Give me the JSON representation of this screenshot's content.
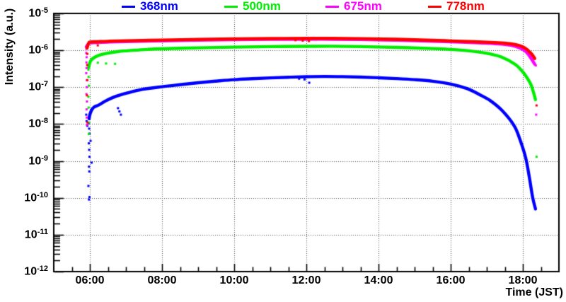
{
  "chart_data": {
    "type": "line",
    "title": "",
    "xlabel": "Time (JST)",
    "ylabel": "Intensity (a.u.)",
    "background_color": "#ffffff",
    "frame_color": "#000000",
    "grid": "dotted",
    "grid_color": "#4d4d4d",
    "legend_position": "top",
    "x_axis": {
      "unit": "hours JST",
      "start_hour": 5,
      "end_hour": 19,
      "major_tick_hours": [
        6,
        8,
        10,
        12,
        14,
        16,
        18
      ],
      "tick_labels": [
        "06:00",
        "08:00",
        "10:00",
        "12:00",
        "14:00",
        "16:00",
        "18:00"
      ],
      "minor_tick_interval_hours": 0.5
    },
    "y_axis": {
      "scale": "log",
      "min": 1e-12,
      "max": 1e-05,
      "tick_label_base": "10",
      "tick_exponents": [
        -5,
        -6,
        -7,
        -8,
        -9,
        -10,
        -11,
        -12
      ]
    },
    "series": [
      {
        "name": "368nm",
        "color": "#0000ff",
        "points": [
          [
            5.98,
            1.4e-08
          ],
          [
            6.0,
            1.8e-08
          ],
          [
            6.05,
            2.4e-08
          ],
          [
            6.12,
            2.9e-08
          ],
          [
            6.25,
            3.3e-08
          ],
          [
            6.45,
            4.3e-08
          ],
          [
            6.65,
            5.3e-08
          ],
          [
            6.85,
            6.2e-08
          ],
          [
            7.05,
            7e-08
          ],
          [
            7.45,
            8.7e-08
          ],
          [
            8.0,
            1.03e-07
          ],
          [
            8.5,
            1.17e-07
          ],
          [
            9.0,
            1.32e-07
          ],
          [
            9.5,
            1.46e-07
          ],
          [
            10.0,
            1.6e-07
          ],
          [
            10.5,
            1.7e-07
          ],
          [
            11.0,
            1.79e-07
          ],
          [
            11.5,
            1.86e-07
          ],
          [
            12.0,
            1.92e-07
          ],
          [
            12.5,
            1.95e-07
          ],
          [
            13.0,
            1.93e-07
          ],
          [
            13.5,
            1.88e-07
          ],
          [
            14.0,
            1.8e-07
          ],
          [
            14.5,
            1.71e-07
          ],
          [
            15.0,
            1.6e-07
          ],
          [
            15.5,
            1.45e-07
          ],
          [
            16.0,
            1.22e-07
          ],
          [
            16.45,
            9.2e-08
          ],
          [
            16.8,
            6.3e-08
          ],
          [
            17.1,
            4.3e-08
          ],
          [
            17.43,
            2.3e-08
          ],
          [
            17.76,
            9e-09
          ],
          [
            17.92,
            3.8e-09
          ],
          [
            18.08,
            1.2e-09
          ],
          [
            18.18,
            3.6e-10
          ],
          [
            18.27,
            1.05e-10
          ],
          [
            18.35,
            5e-11
          ]
        ],
        "stray_points": [
          [
            5.9,
            1.8e-08
          ],
          [
            5.91,
            1.2e-08
          ],
          [
            5.93,
            9e-09
          ],
          [
            5.97,
            1.5e-08
          ],
          [
            5.975,
            1.05e-08
          ],
          [
            5.98,
            7.5e-09
          ],
          [
            5.99,
            5.5e-09
          ],
          [
            5.97,
            3e-09
          ],
          [
            5.98,
            2e-09
          ],
          [
            5.99,
            1.3e-09
          ],
          [
            5.975,
            7e-10
          ],
          [
            5.985,
            5.2e-10
          ],
          [
            5.96,
            2.1e-10
          ],
          [
            5.99,
            1.05e-10
          ],
          [
            5.975,
            9e-11
          ],
          [
            6.02,
            3.5e-09
          ],
          [
            6.05,
            9e-10
          ],
          [
            6.78,
            2.7e-08
          ],
          [
            6.82,
            2.2e-08
          ],
          [
            6.86,
            1.8e-08
          ],
          [
            11.8,
            1.7e-07
          ],
          [
            11.95,
            1.62e-07
          ],
          [
            12.08,
            1.32e-07
          ]
        ]
      },
      {
        "name": "500nm",
        "color": "#00ee00",
        "points": [
          [
            5.97,
            3.5e-07
          ],
          [
            6.0,
            4.6e-07
          ],
          [
            6.05,
            5.6e-07
          ],
          [
            6.15,
            6.6e-07
          ],
          [
            6.3,
            7.6e-07
          ],
          [
            6.5,
            8.4e-07
          ],
          [
            6.8,
            9.3e-07
          ],
          [
            7.2,
            1e-06
          ],
          [
            7.6,
            1.06e-06
          ],
          [
            8.0,
            1.1e-06
          ],
          [
            9.0,
            1.17e-06
          ],
          [
            10.0,
            1.22e-06
          ],
          [
            11.0,
            1.26e-06
          ],
          [
            12.0,
            1.28e-06
          ],
          [
            12.7,
            1.29e-06
          ],
          [
            13.5,
            1.26e-06
          ],
          [
            14.5,
            1.2e-06
          ],
          [
            15.5,
            1.12e-06
          ],
          [
            16.0,
            1.06e-06
          ],
          [
            16.5,
            9.7e-07
          ],
          [
            17.0,
            8.3e-07
          ],
          [
            17.4,
            6.6e-07
          ],
          [
            17.78,
            4.2e-07
          ],
          [
            18.0,
            2.6e-07
          ],
          [
            18.1,
            1.9e-07
          ],
          [
            18.22,
            1.2e-07
          ],
          [
            18.3,
            7e-08
          ],
          [
            18.35,
            4.6e-08
          ]
        ],
        "stray_points": [
          [
            5.96,
            3e-07
          ],
          [
            5.965,
            1.9e-07
          ],
          [
            5.97,
            1.1e-07
          ],
          [
            5.96,
            5.5e-08
          ],
          [
            5.965,
            2.8e-08
          ],
          [
            5.975,
            1.1e-08
          ],
          [
            5.97,
            5.4e-09
          ],
          [
            6.22,
            4.6e-07
          ],
          [
            6.45,
            4.4e-07
          ],
          [
            6.7,
            4.3e-07
          ],
          [
            18.38,
            1.3e-09
          ]
        ]
      },
      {
        "name": "675nm",
        "color": "#ff00ff",
        "points": [
          [
            5.9,
            1.25e-06
          ],
          [
            5.95,
            1.45e-06
          ],
          [
            6.0,
            1.58e-06
          ],
          [
            6.2,
            1.62e-06
          ],
          [
            6.5,
            1.67e-06
          ],
          [
            7.0,
            1.73e-06
          ],
          [
            8.0,
            1.8e-06
          ],
          [
            9.0,
            1.88e-06
          ],
          [
            10.0,
            1.94e-06
          ],
          [
            11.0,
            1.98e-06
          ],
          [
            12.0,
            2e-06
          ],
          [
            12.7,
            2e-06
          ],
          [
            13.5,
            1.96e-06
          ],
          [
            14.5,
            1.88e-06
          ],
          [
            15.5,
            1.76e-06
          ],
          [
            16.0,
            1.7e-06
          ],
          [
            16.5,
            1.63e-06
          ],
          [
            17.0,
            1.56e-06
          ],
          [
            17.4,
            1.47e-06
          ],
          [
            17.7,
            1.35e-06
          ],
          [
            17.9,
            1.18e-06
          ],
          [
            18.05,
            9.8e-07
          ],
          [
            18.15,
            7.8e-07
          ],
          [
            18.25,
            5.6e-07
          ],
          [
            18.33,
            4.2e-07
          ]
        ],
        "stray_points": [
          [
            5.905,
            1.1e-06
          ],
          [
            5.9,
            8.5e-07
          ],
          [
            5.91,
            6.5e-07
          ],
          [
            5.905,
            4.7e-07
          ],
          [
            5.91,
            3.3e-07
          ],
          [
            5.9,
            2.4e-07
          ],
          [
            5.915,
            1.55e-07
          ],
          [
            5.91,
            1e-07
          ],
          [
            5.905,
            6.5e-08
          ],
          [
            5.92,
            4.1e-08
          ],
          [
            5.91,
            2.5e-08
          ],
          [
            5.915,
            1.5e-08
          ],
          [
            5.92,
            9.5e-09
          ],
          [
            18.37,
            1.8e-08
          ],
          [
            18.36,
            3.9e-07
          ]
        ]
      },
      {
        "name": "778nm",
        "color": "#ff0000",
        "points": [
          [
            5.92,
            1.15e-06
          ],
          [
            5.96,
            1.5e-06
          ],
          [
            6.0,
            1.68e-06
          ],
          [
            6.2,
            1.71e-06
          ],
          [
            6.5,
            1.76e-06
          ],
          [
            7.0,
            1.82e-06
          ],
          [
            8.0,
            1.9e-06
          ],
          [
            9.0,
            1.98e-06
          ],
          [
            10.0,
            2.04e-06
          ],
          [
            11.0,
            2.09e-06
          ],
          [
            12.0,
            2.11e-06
          ],
          [
            12.7,
            2.11e-06
          ],
          [
            13.5,
            2.07e-06
          ],
          [
            14.5,
            1.99e-06
          ],
          [
            15.5,
            1.87e-06
          ],
          [
            16.0,
            1.8e-06
          ],
          [
            16.5,
            1.73e-06
          ],
          [
            17.0,
            1.66e-06
          ],
          [
            17.4,
            1.58e-06
          ],
          [
            17.7,
            1.48e-06
          ],
          [
            17.9,
            1.35e-06
          ],
          [
            18.05,
            1.17e-06
          ],
          [
            18.15,
            9.8e-07
          ],
          [
            18.25,
            7.8e-07
          ],
          [
            18.33,
            6e-07
          ]
        ],
        "stray_points": [
          [
            5.93,
            8e-07
          ],
          [
            5.925,
            4e-07
          ],
          [
            5.93,
            1.55e-07
          ],
          [
            5.92,
            6e-08
          ],
          [
            5.935,
            1.1e-08
          ],
          [
            6.22,
            1.36e-06
          ],
          [
            11.7,
            1.88e-06
          ],
          [
            11.9,
            1.83e-06
          ],
          [
            12.07,
            1.78e-06
          ],
          [
            18.38,
            3.2e-08
          ]
        ]
      }
    ]
  }
}
